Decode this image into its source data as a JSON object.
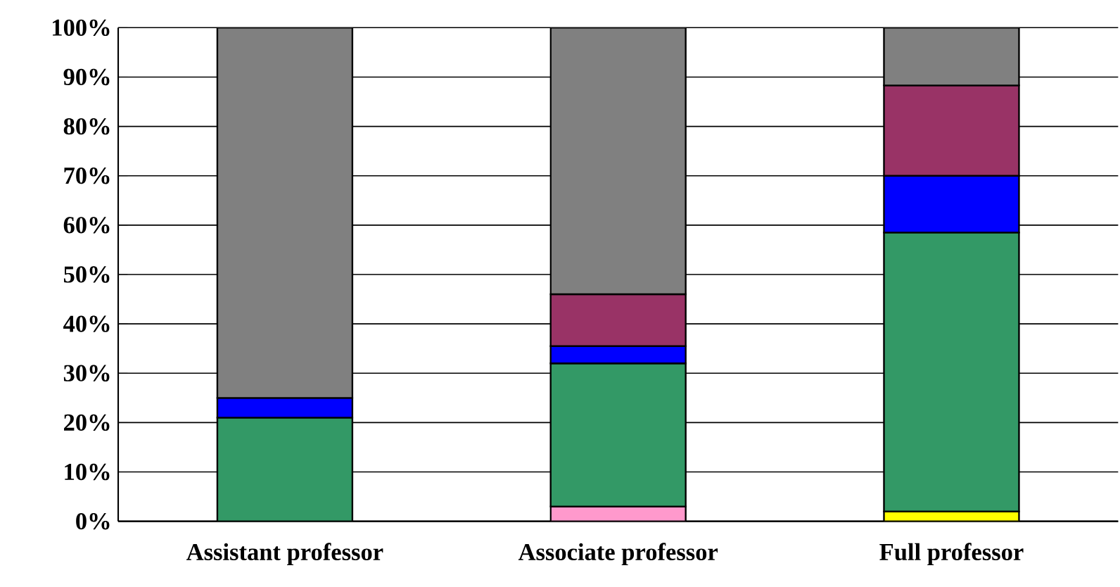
{
  "chart_data": {
    "type": "bar",
    "stacked": true,
    "categories": [
      "Assistant professor",
      "Associate professor",
      "Full professor"
    ],
    "series": [
      {
        "color": "#ffff00",
        "values": [
          null,
          null,
          2
        ]
      },
      {
        "color": "#ff99cc",
        "values": [
          null,
          3,
          null
        ]
      },
      {
        "color": "#339966",
        "values": [
          21,
          29,
          56.5
        ]
      },
      {
        "color": "#0000ff",
        "values": [
          4,
          3.5,
          11.5
        ]
      },
      {
        "color": "#993366",
        "values": [
          null,
          10.5,
          18.3
        ]
      },
      {
        "color": "#808080",
        "values": [
          75,
          54,
          11.7
        ]
      }
    ],
    "ylim": [
      0,
      100
    ],
    "yticks": [
      {
        "value": 0,
        "label": "0%"
      },
      {
        "value": 10,
        "label": "10%"
      },
      {
        "value": 20,
        "label": "20%"
      },
      {
        "value": 30,
        "label": "30%"
      },
      {
        "value": 40,
        "label": "40%"
      },
      {
        "value": 50,
        "label": "50%"
      },
      {
        "value": 60,
        "label": "60%"
      },
      {
        "value": 70,
        "label": "70%"
      },
      {
        "value": 80,
        "label": "80%"
      },
      {
        "value": 90,
        "label": "90%"
      },
      {
        "value": 100,
        "label": "100%"
      }
    ],
    "grid": "y"
  }
}
